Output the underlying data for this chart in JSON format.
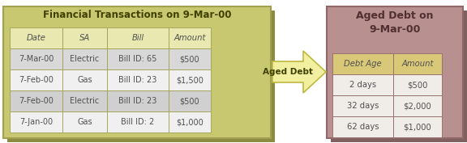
{
  "left_title": "Financial Transactions on 9-Mar-00",
  "right_title": "Aged Debt on\n9-Mar-00",
  "arrow_label": "Aged Debt",
  "left_bg": "#c8c870",
  "left_shadow": "#8c8c40",
  "left_table_header_bg": "#e8e8b0",
  "left_row_colors": [
    "#d8d8d8",
    "#f0f0f0",
    "#d0d0d0",
    "#f0f0f0"
  ],
  "right_bg": "#b89090",
  "right_shadow": "#806060",
  "right_table_header_bg": "#d8c878",
  "right_table_row_bg": "#f0ece8",
  "left_headers": [
    "Date",
    "SA",
    "Bill",
    "Amount"
  ],
  "left_rows": [
    [
      "7-Mar-00",
      "Electric",
      "Bill ID: 65",
      "$500"
    ],
    [
      "7-Feb-00",
      "Gas",
      "Bill ID: 23",
      "$1,500"
    ],
    [
      "7-Feb-00",
      "Electric",
      "Bill ID: 23",
      "$500"
    ],
    [
      "7-Jan-00",
      "Gas",
      "Bill ID: 2",
      "$1,000"
    ]
  ],
  "right_headers": [
    "Debt Age",
    "Amount"
  ],
  "right_rows": [
    [
      "2 days",
      "$500"
    ],
    [
      "32 days",
      "$2,000"
    ],
    [
      "62 days",
      "$1,000"
    ]
  ],
  "arrow_fill": "#f0f0a0",
  "arrow_edge": "#c0b840",
  "title_color": "#404000",
  "right_title_color": "#503030",
  "table_text_color": "#505050",
  "left_border": "#a0a050",
  "right_border": "#906868"
}
